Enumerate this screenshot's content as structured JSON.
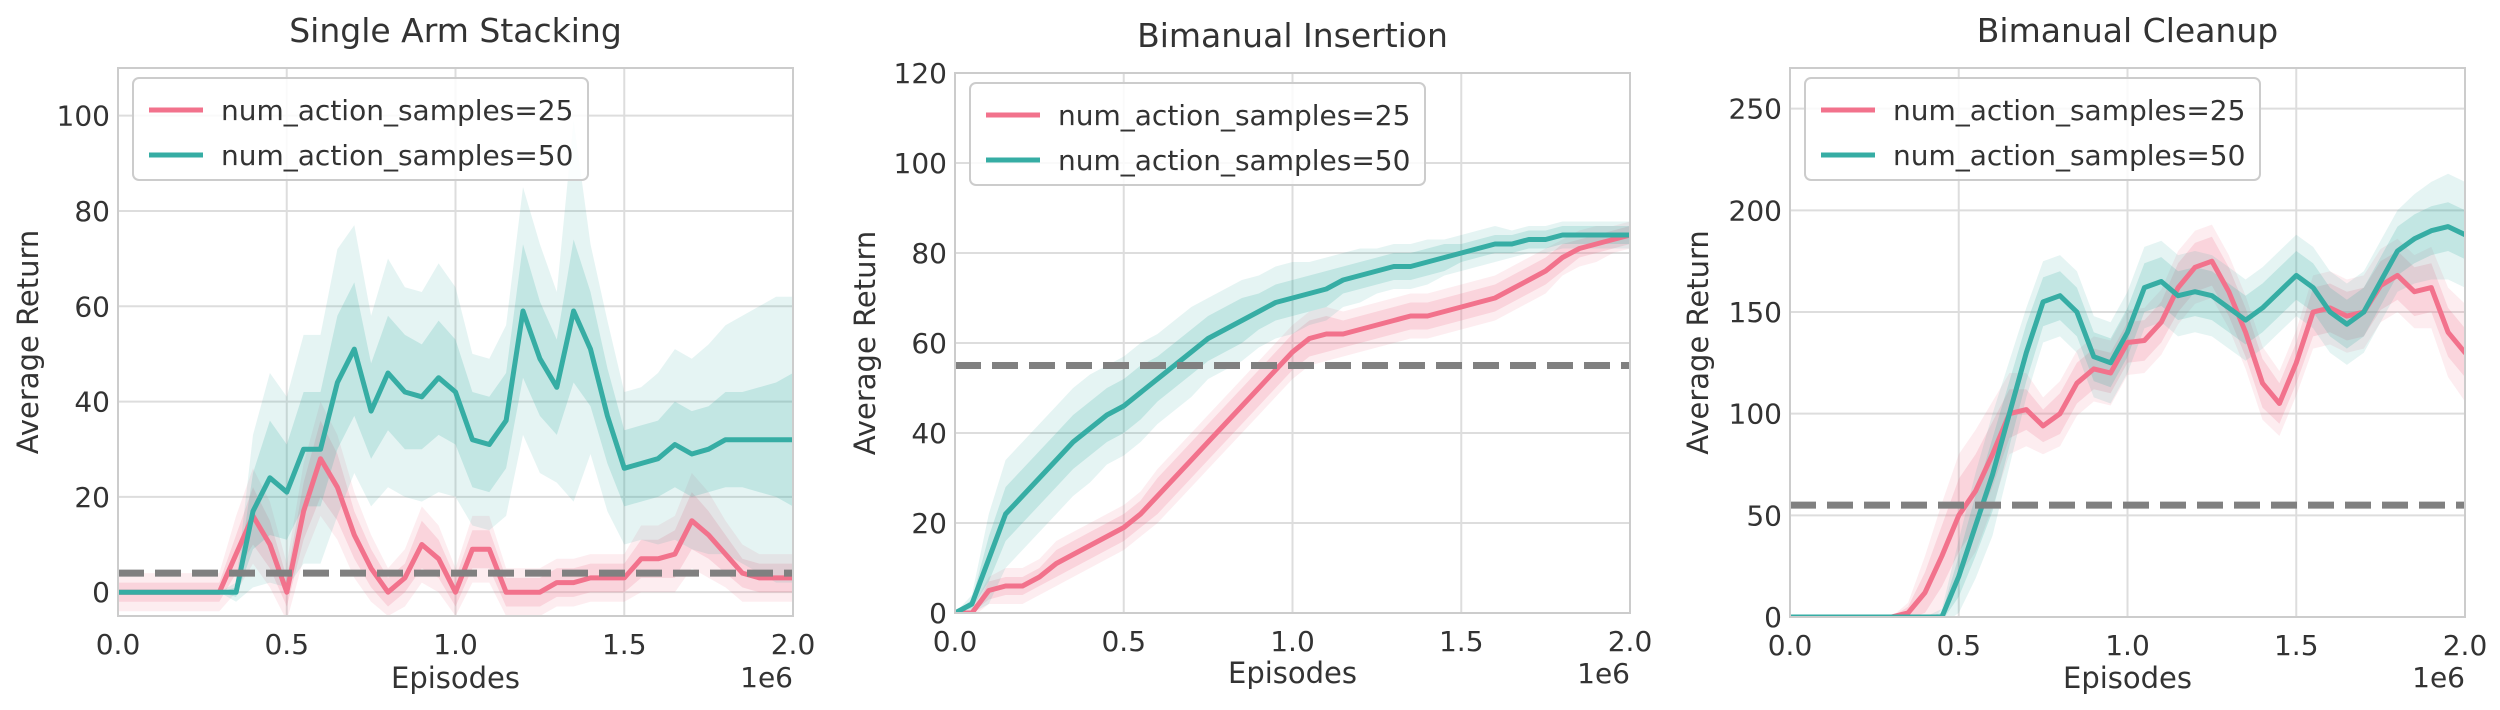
{
  "colors": {
    "pink": "#f2728c",
    "teal": "#36ada4",
    "baseline": "#808080",
    "grid": "#dddddd",
    "frame": "#cccccc"
  },
  "chart_data": [
    {
      "type": "line",
      "title": "Single Arm Stacking",
      "xlabel": "Episodes",
      "ylabel": "Average Return",
      "x_multiplier_label": "1e6",
      "xlim": [
        0,
        2.0
      ],
      "ylim": [
        -5,
        110
      ],
      "xticks": [
        0,
        0.5,
        1.0,
        1.5,
        2.0
      ],
      "xtick_labels": [
        "0.0",
        "0.5",
        "1.0",
        "1.5",
        "2.0"
      ],
      "yticks": [
        0,
        20,
        40,
        60,
        80,
        100
      ],
      "ytick_labels": [
        "0",
        "20",
        "40",
        "60",
        "80",
        "100"
      ],
      "legend": [
        "num_action_samples=25",
        "num_action_samples=50"
      ],
      "legend_position": "top-left",
      "baseline": 4,
      "series": [
        {
          "name": "num_action_samples=25",
          "color_key": "pink",
          "x": [
            0,
            0.05,
            0.1,
            0.15,
            0.2,
            0.25,
            0.3,
            0.35,
            0.4,
            0.45,
            0.5,
            0.55,
            0.6,
            0.65,
            0.7,
            0.75,
            0.8,
            0.85,
            0.9,
            0.95,
            1.0,
            1.05,
            1.1,
            1.15,
            1.2,
            1.25,
            1.3,
            1.35,
            1.4,
            1.45,
            1.5,
            1.55,
            1.6,
            1.65,
            1.7,
            1.75,
            1.8,
            1.85,
            1.9,
            1.95,
            2.0
          ],
          "values": [
            0,
            0,
            0,
            0,
            0,
            0,
            0,
            8,
            16,
            10,
            0,
            17,
            28,
            22,
            12,
            5,
            0,
            3,
            10,
            7,
            0,
            9,
            9,
            0,
            0,
            0,
            2,
            2,
            3,
            3,
            3,
            7,
            7,
            8,
            15,
            12,
            8,
            4,
            3,
            3,
            3
          ],
          "band_inner": [
            2,
            2,
            2,
            2,
            2,
            2,
            2,
            4,
            6,
            5,
            3,
            6,
            8,
            7,
            5,
            4,
            3,
            3,
            5,
            4,
            3,
            4,
            4,
            3,
            3,
            3,
            3,
            3,
            3,
            3,
            3,
            4,
            4,
            5,
            6,
            5,
            4,
            3,
            3,
            3,
            3
          ],
          "band_outer": [
            4,
            4,
            4,
            4,
            4,
            4,
            4,
            8,
            10,
            9,
            6,
            10,
            12,
            11,
            9,
            7,
            5,
            6,
            8,
            7,
            5,
            7,
            7,
            5,
            5,
            5,
            5,
            5,
            5,
            5,
            5,
            7,
            7,
            8,
            10,
            9,
            7,
            6,
            5,
            5,
            5
          ]
        },
        {
          "name": "num_action_samples=50",
          "color_key": "teal",
          "x": [
            0,
            0.05,
            0.1,
            0.15,
            0.2,
            0.25,
            0.3,
            0.35,
            0.4,
            0.45,
            0.5,
            0.55,
            0.6,
            0.65,
            0.7,
            0.75,
            0.8,
            0.85,
            0.9,
            0.95,
            1.0,
            1.05,
            1.1,
            1.15,
            1.2,
            1.25,
            1.3,
            1.35,
            1.4,
            1.45,
            1.5,
            1.55,
            1.6,
            1.65,
            1.7,
            1.75,
            1.8,
            1.85,
            1.9,
            1.95,
            2.0
          ],
          "values": [
            0,
            0,
            0,
            0,
            0,
            0,
            0,
            0,
            17,
            24,
            21,
            30,
            30,
            44,
            51,
            38,
            46,
            42,
            41,
            45,
            42,
            32,
            31,
            36,
            59,
            49,
            43,
            59,
            51,
            37,
            26,
            27,
            28,
            31,
            29,
            30,
            32,
            32,
            32,
            32,
            32
          ],
          "band_inner": [
            0,
            0,
            0,
            0,
            0,
            0,
            0,
            1,
            8,
            12,
            10,
            12,
            12,
            14,
            14,
            10,
            12,
            12,
            11,
            12,
            11,
            10,
            10,
            10,
            14,
            12,
            10,
            15,
            12,
            10,
            8,
            8,
            8,
            9,
            9,
            9,
            10,
            10,
            11,
            12,
            14
          ],
          "band_outer": [
            0,
            0,
            0,
            0,
            0,
            0,
            0,
            2,
            16,
            22,
            20,
            24,
            24,
            28,
            26,
            20,
            24,
            22,
            22,
            24,
            22,
            18,
            18,
            20,
            26,
            24,
            20,
            40,
            22,
            20,
            16,
            16,
            18,
            20,
            20,
            22,
            24,
            26,
            28,
            30,
            30
          ]
        }
      ]
    },
    {
      "type": "line",
      "title": "Bimanual Insertion",
      "xlabel": "Episodes",
      "ylabel": "Average Return",
      "x_multiplier_label": "1e6",
      "xlim": [
        0,
        2.0
      ],
      "ylim": [
        0,
        120
      ],
      "xticks": [
        0,
        0.5,
        1.0,
        1.5,
        2.0
      ],
      "xtick_labels": [
        "0.0",
        "0.5",
        "1.0",
        "1.5",
        "2.0"
      ],
      "yticks": [
        0,
        20,
        40,
        60,
        80,
        100,
        120
      ],
      "ytick_labels": [
        "0",
        "20",
        "40",
        "60",
        "80",
        "100",
        "120"
      ],
      "legend": [
        "num_action_samples=25",
        "num_action_samples=50"
      ],
      "legend_position": "top-left",
      "baseline": 55,
      "series": [
        {
          "name": "num_action_samples=25",
          "color_key": "pink",
          "x": [
            0,
            0.05,
            0.1,
            0.15,
            0.2,
            0.25,
            0.3,
            0.35,
            0.4,
            0.45,
            0.5,
            0.55,
            0.6,
            0.65,
            0.7,
            0.75,
            0.8,
            0.85,
            0.9,
            0.95,
            1.0,
            1.05,
            1.1,
            1.15,
            1.2,
            1.25,
            1.3,
            1.35,
            1.4,
            1.45,
            1.5,
            1.55,
            1.6,
            1.65,
            1.7,
            1.75,
            1.8,
            1.85,
            1.9,
            1.95,
            2.0
          ],
          "values": [
            0,
            0,
            5,
            6,
            6,
            8,
            11,
            13,
            15,
            17,
            19,
            22,
            26,
            30,
            34,
            38,
            42,
            46,
            50,
            54,
            58,
            61,
            62,
            62,
            63,
            64,
            65,
            66,
            66,
            67,
            68,
            69,
            70,
            72,
            74,
            76,
            79,
            81,
            82,
            83,
            84
          ],
          "band_inner": [
            0,
            0,
            2,
            2,
            2,
            2,
            3,
            3,
            3,
            3,
            3,
            3,
            4,
            4,
            4,
            4,
            4,
            4,
            4,
            4,
            4,
            4,
            4,
            3,
            3,
            3,
            3,
            3,
            3,
            3,
            3,
            3,
            3,
            3,
            3,
            3,
            3,
            2,
            2,
            2,
            2
          ],
          "band_outer": [
            0,
            1,
            3,
            4,
            4,
            4,
            5,
            5,
            5,
            5,
            5,
            5,
            6,
            6,
            6,
            6,
            6,
            6,
            6,
            6,
            6,
            6,
            6,
            5,
            5,
            5,
            5,
            5,
            5,
            5,
            5,
            5,
            5,
            5,
            5,
            5,
            4,
            4,
            4,
            3,
            3
          ]
        },
        {
          "name": "num_action_samples=50",
          "color_key": "teal",
          "x": [
            0,
            0.05,
            0.1,
            0.15,
            0.2,
            0.25,
            0.3,
            0.35,
            0.4,
            0.45,
            0.5,
            0.55,
            0.6,
            0.65,
            0.7,
            0.75,
            0.8,
            0.85,
            0.9,
            0.95,
            1.0,
            1.05,
            1.1,
            1.15,
            1.2,
            1.25,
            1.3,
            1.35,
            1.4,
            1.45,
            1.5,
            1.55,
            1.6,
            1.65,
            1.7,
            1.75,
            1.8,
            1.85,
            1.9,
            1.95,
            2.0
          ],
          "values": [
            0,
            2,
            12,
            22,
            26,
            30,
            34,
            38,
            41,
            44,
            46,
            49,
            52,
            55,
            58,
            61,
            63,
            65,
            67,
            69,
            70,
            71,
            72,
            74,
            75,
            76,
            77,
            77,
            78,
            79,
            80,
            81,
            82,
            82,
            83,
            83,
            84,
            84,
            84,
            84,
            84
          ],
          "band_inner": [
            0,
            1,
            5,
            6,
            6,
            6,
            6,
            6,
            6,
            6,
            6,
            6,
            5,
            5,
            5,
            5,
            5,
            5,
            4,
            4,
            4,
            4,
            4,
            3,
            3,
            3,
            3,
            3,
            3,
            3,
            2,
            2,
            2,
            2,
            2,
            2,
            2,
            2,
            2,
            2,
            2
          ],
          "band_outer": [
            0,
            2,
            10,
            12,
            12,
            12,
            12,
            12,
            12,
            11,
            11,
            11,
            10,
            10,
            10,
            9,
            9,
            9,
            8,
            8,
            8,
            7,
            7,
            6,
            6,
            5,
            5,
            5,
            5,
            4,
            4,
            4,
            4,
            3,
            3,
            3,
            3,
            3,
            3,
            3,
            3
          ]
        }
      ]
    },
    {
      "type": "line",
      "title": "Bimanual Cleanup",
      "xlabel": "Episodes",
      "ylabel": "Average Return",
      "x_multiplier_label": "1e6",
      "xlim": [
        0,
        2.0
      ],
      "ylim": [
        0,
        270
      ],
      "xticks": [
        0,
        0.5,
        1.0,
        1.5,
        2.0
      ],
      "xtick_labels": [
        "0.0",
        "0.5",
        "1.0",
        "1.5",
        "2.0"
      ],
      "yticks": [
        0,
        50,
        100,
        150,
        200,
        250
      ],
      "ytick_labels": [
        "0",
        "50",
        "100",
        "150",
        "200",
        "250"
      ],
      "legend": [
        "num_action_samples=25",
        "num_action_samples=50"
      ],
      "legend_position": "top-left",
      "baseline": 55,
      "series": [
        {
          "name": "num_action_samples=25",
          "color_key": "pink",
          "x": [
            0,
            0.05,
            0.1,
            0.15,
            0.2,
            0.25,
            0.3,
            0.35,
            0.4,
            0.45,
            0.5,
            0.55,
            0.6,
            0.65,
            0.7,
            0.75,
            0.8,
            0.85,
            0.9,
            0.95,
            1.0,
            1.05,
            1.1,
            1.15,
            1.2,
            1.25,
            1.3,
            1.35,
            1.4,
            1.45,
            1.5,
            1.55,
            1.6,
            1.65,
            1.7,
            1.75,
            1.8,
            1.85,
            1.9,
            1.95,
            2.0
          ],
          "values": [
            0,
            0,
            0,
            0,
            0,
            0,
            0,
            2,
            12,
            30,
            50,
            62,
            80,
            100,
            102,
            94,
            100,
            115,
            122,
            120,
            135,
            136,
            145,
            162,
            172,
            175,
            160,
            140,
            115,
            105,
            125,
            150,
            152,
            148,
            150,
            163,
            168,
            160,
            162,
            140,
            130
          ],
          "band_inner": [
            0,
            0,
            0,
            0,
            0,
            0,
            0,
            3,
            10,
            15,
            18,
            18,
            16,
            12,
            10,
            8,
            10,
            10,
            10,
            10,
            10,
            10,
            10,
            12,
            12,
            12,
            12,
            12,
            12,
            10,
            10,
            12,
            12,
            12,
            12,
            12,
            12,
            12,
            12,
            12,
            12
          ],
          "band_outer": [
            0,
            0,
            0,
            0,
            0,
            0,
            0,
            5,
            18,
            26,
            30,
            30,
            26,
            20,
            18,
            14,
            16,
            16,
            16,
            16,
            16,
            16,
            16,
            18,
            18,
            18,
            18,
            18,
            18,
            16,
            16,
            18,
            18,
            18,
            18,
            18,
            18,
            18,
            20,
            22,
            24
          ]
        },
        {
          "name": "num_action_samples=50",
          "color_key": "teal",
          "x": [
            0,
            0.05,
            0.1,
            0.15,
            0.2,
            0.25,
            0.3,
            0.35,
            0.4,
            0.45,
            0.5,
            0.55,
            0.6,
            0.65,
            0.7,
            0.75,
            0.8,
            0.85,
            0.9,
            0.95,
            1.0,
            1.05,
            1.1,
            1.15,
            1.2,
            1.25,
            1.3,
            1.35,
            1.4,
            1.45,
            1.5,
            1.55,
            1.6,
            1.65,
            1.7,
            1.75,
            1.8,
            1.85,
            1.9,
            1.95,
            2.0
          ],
          "values": [
            0,
            0,
            0,
            0,
            0,
            0,
            0,
            0,
            0,
            0,
            20,
            45,
            70,
            100,
            130,
            155,
            158,
            150,
            128,
            125,
            140,
            162,
            165,
            158,
            160,
            158,
            152,
            146,
            152,
            160,
            168,
            162,
            150,
            144,
            150,
            165,
            180,
            186,
            190,
            192,
            188
          ],
          "band_inner": [
            0,
            0,
            0,
            0,
            0,
            0,
            0,
            0,
            0,
            2,
            10,
            15,
            18,
            16,
            14,
            12,
            12,
            12,
            12,
            12,
            12,
            12,
            12,
            12,
            12,
            12,
            12,
            12,
            12,
            12,
            12,
            12,
            12,
            12,
            12,
            12,
            12,
            12,
            12,
            12,
            12
          ],
          "band_outer": [
            0,
            0,
            0,
            0,
            0,
            0,
            0,
            0,
            0,
            4,
            18,
            26,
            30,
            26,
            22,
            20,
            20,
            20,
            20,
            20,
            20,
            20,
            20,
            20,
            20,
            20,
            20,
            20,
            20,
            20,
            20,
            20,
            20,
            20,
            20,
            20,
            20,
            22,
            24,
            26,
            26
          ]
        }
      ]
    }
  ]
}
